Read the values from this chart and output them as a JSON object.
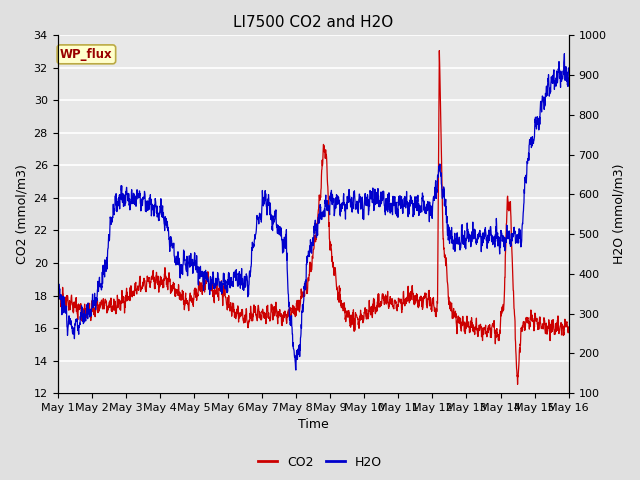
{
  "title": "LI7500 CO2 and H2O",
  "xlabel": "Time",
  "ylabel_left": "CO2 (mmol/m3)",
  "ylabel_right": "H2O (mmol/m3)",
  "ylim_left": [
    12,
    34
  ],
  "ylim_right": [
    100,
    1000
  ],
  "yticks_left": [
    12,
    14,
    16,
    18,
    20,
    22,
    24,
    26,
    28,
    30,
    32,
    34
  ],
  "yticks_right": [
    100,
    200,
    300,
    400,
    500,
    600,
    700,
    800,
    900,
    1000
  ],
  "xtick_labels": [
    "May 1",
    "May 2",
    "May 3",
    "May 4",
    "May 5",
    "May 6",
    "May 7",
    "May 8",
    "May 9",
    "May 10",
    "May 11",
    "May 12",
    "May 13",
    "May 14",
    "May 15",
    "May 16"
  ],
  "co2_color": "#cc0000",
  "h2o_color": "#0000cc",
  "fig_bg_color": "#e0e0e0",
  "plot_bg_color": "#e8e8e8",
  "grid_color": "#ffffff",
  "annotation_text": "WP_flux",
  "annotation_bg": "#ffffcc",
  "annotation_border": "#bbaa44",
  "legend_co2": "CO2",
  "legend_h2o": "H2O",
  "co2_xknots": [
    0,
    0.2,
    0.4,
    0.6,
    0.8,
    1.0,
    1.2,
    1.4,
    1.6,
    1.8,
    2.0,
    2.2,
    2.4,
    2.6,
    2.8,
    3.0,
    3.2,
    3.4,
    3.6,
    3.8,
    4.0,
    4.2,
    4.4,
    4.6,
    4.8,
    5.0,
    5.2,
    5.4,
    5.6,
    5.8,
    6.0,
    6.2,
    6.4,
    6.6,
    6.8,
    7.0,
    7.1,
    7.2,
    7.3,
    7.4,
    7.5,
    7.6,
    7.7,
    7.8,
    7.85,
    7.9,
    8.0,
    8.2,
    8.4,
    8.6,
    8.8,
    9.0,
    9.2,
    9.4,
    9.6,
    9.8,
    10.0,
    10.2,
    10.4,
    10.6,
    10.8,
    11.0,
    11.05,
    11.1,
    11.15,
    11.2,
    11.25,
    11.3,
    11.5,
    11.7,
    12.0,
    12.2,
    12.4,
    12.6,
    12.8,
    12.85,
    12.9,
    12.95,
    13.0,
    13.1,
    13.2,
    13.3,
    13.4,
    13.5,
    13.6,
    13.8,
    14.0,
    14.2,
    14.4,
    14.6,
    14.8,
    15.0
  ],
  "co2_yknots": [
    18.0,
    17.8,
    17.5,
    17.2,
    17.0,
    17.1,
    17.3,
    17.5,
    17.2,
    17.5,
    17.8,
    18.2,
    18.5,
    18.8,
    19.0,
    18.8,
    19.0,
    18.5,
    18.0,
    17.5,
    18.0,
    18.5,
    19.0,
    18.0,
    18.5,
    17.5,
    17.0,
    16.8,
    16.5,
    17.0,
    16.8,
    16.8,
    17.0,
    16.5,
    16.8,
    17.2,
    17.5,
    18.0,
    18.5,
    19.5,
    20.5,
    22.0,
    24.0,
    26.8,
    27.2,
    26.0,
    21.0,
    18.5,
    17.0,
    16.5,
    16.5,
    16.8,
    17.0,
    17.5,
    17.8,
    17.5,
    17.5,
    17.8,
    18.0,
    17.5,
    17.8,
    17.5,
    17.3,
    17.0,
    17.2,
    33.5,
    28.0,
    22.0,
    17.5,
    16.5,
    16.2,
    16.0,
    15.8,
    15.8,
    16.0,
    15.8,
    15.5,
    15.3,
    16.5,
    17.5,
    24.0,
    23.0,
    17.0,
    12.5,
    16.0,
    16.5,
    16.5,
    16.2,
    16.0,
    16.0,
    16.0,
    16.2
  ],
  "h2o_xknots": [
    0,
    0.15,
    0.3,
    0.5,
    0.7,
    1.0,
    1.2,
    1.4,
    1.6,
    1.8,
    2.0,
    2.2,
    2.4,
    2.6,
    2.8,
    3.0,
    3.1,
    3.2,
    3.3,
    3.4,
    3.5,
    3.6,
    3.7,
    3.8,
    4.0,
    4.2,
    4.4,
    4.6,
    4.8,
    5.0,
    5.2,
    5.4,
    5.6,
    5.8,
    6.0,
    6.1,
    6.2,
    6.3,
    6.4,
    6.5,
    6.6,
    6.7,
    6.8,
    6.9,
    7.0,
    7.1,
    7.2,
    7.3,
    7.5,
    7.7,
    7.9,
    8.0,
    8.2,
    8.4,
    8.6,
    8.8,
    9.0,
    9.2,
    9.4,
    9.6,
    9.8,
    10.0,
    10.2,
    10.4,
    10.6,
    10.8,
    11.0,
    11.1,
    11.2,
    11.3,
    11.5,
    11.7,
    12.0,
    12.2,
    12.4,
    12.6,
    12.8,
    13.0,
    13.2,
    13.4,
    13.6,
    13.8,
    14.0,
    14.2,
    14.4,
    14.6,
    14.8,
    15.0
  ],
  "h2o_yknots": [
    370,
    330,
    280,
    260,
    290,
    310,
    360,
    410,
    550,
    590,
    600,
    580,
    590,
    580,
    570,
    560,
    550,
    520,
    490,
    460,
    430,
    410,
    430,
    420,
    430,
    400,
    380,
    380,
    370,
    380,
    390,
    380,
    370,
    510,
    570,
    590,
    570,
    530,
    540,
    510,
    490,
    480,
    310,
    230,
    170,
    220,
    310,
    420,
    490,
    550,
    570,
    580,
    580,
    570,
    590,
    580,
    570,
    590,
    590,
    580,
    570,
    570,
    580,
    570,
    570,
    570,
    560,
    620,
    660,
    620,
    490,
    480,
    490,
    500,
    490,
    490,
    490,
    490,
    490,
    500,
    490,
    700,
    760,
    820,
    870,
    890,
    900,
    910
  ]
}
